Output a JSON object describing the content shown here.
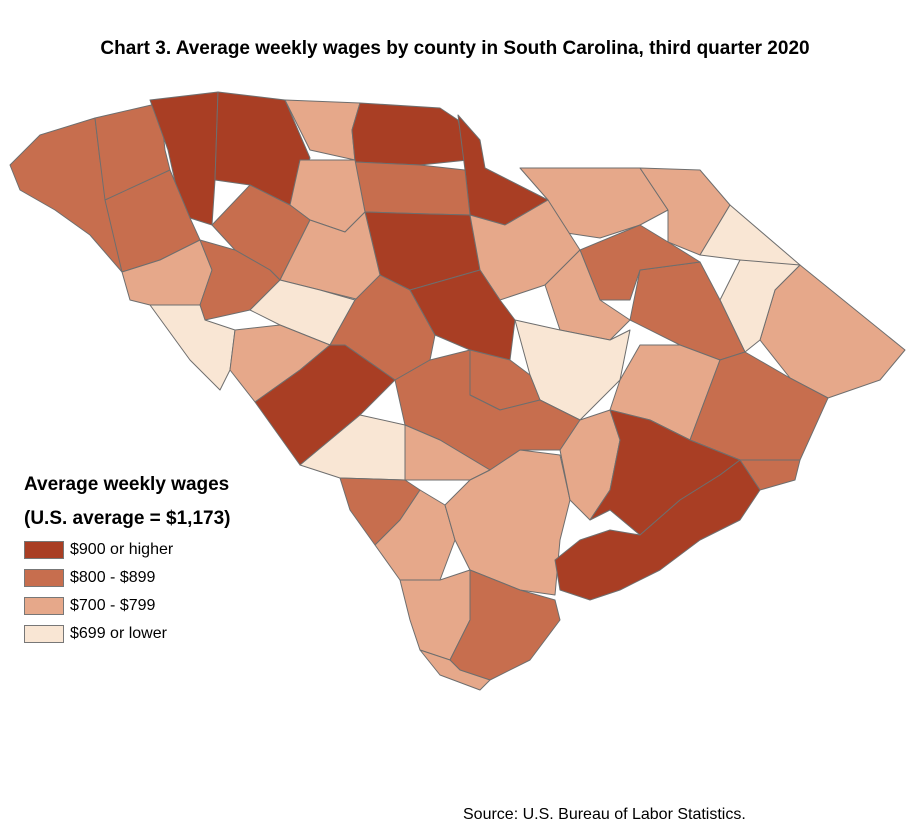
{
  "title": "Chart 3. Average weekly wages by county in South Carolina, third quarter 2020",
  "legend": {
    "title": "Average weekly wages",
    "subtitle": "(U.S. average = $1,173)",
    "items": [
      {
        "label": "$900 or higher",
        "color": "#a93e24"
      },
      {
        "label": "$800 - $899",
        "color": "#c76e4e"
      },
      {
        "label": "$700 - $799",
        "color": "#e6a88a"
      },
      {
        "label": "$699 or lower",
        "color": "#f9e6d4"
      }
    ]
  },
  "source": "Source: U.S. Bureau of Labor Statistics."
}
